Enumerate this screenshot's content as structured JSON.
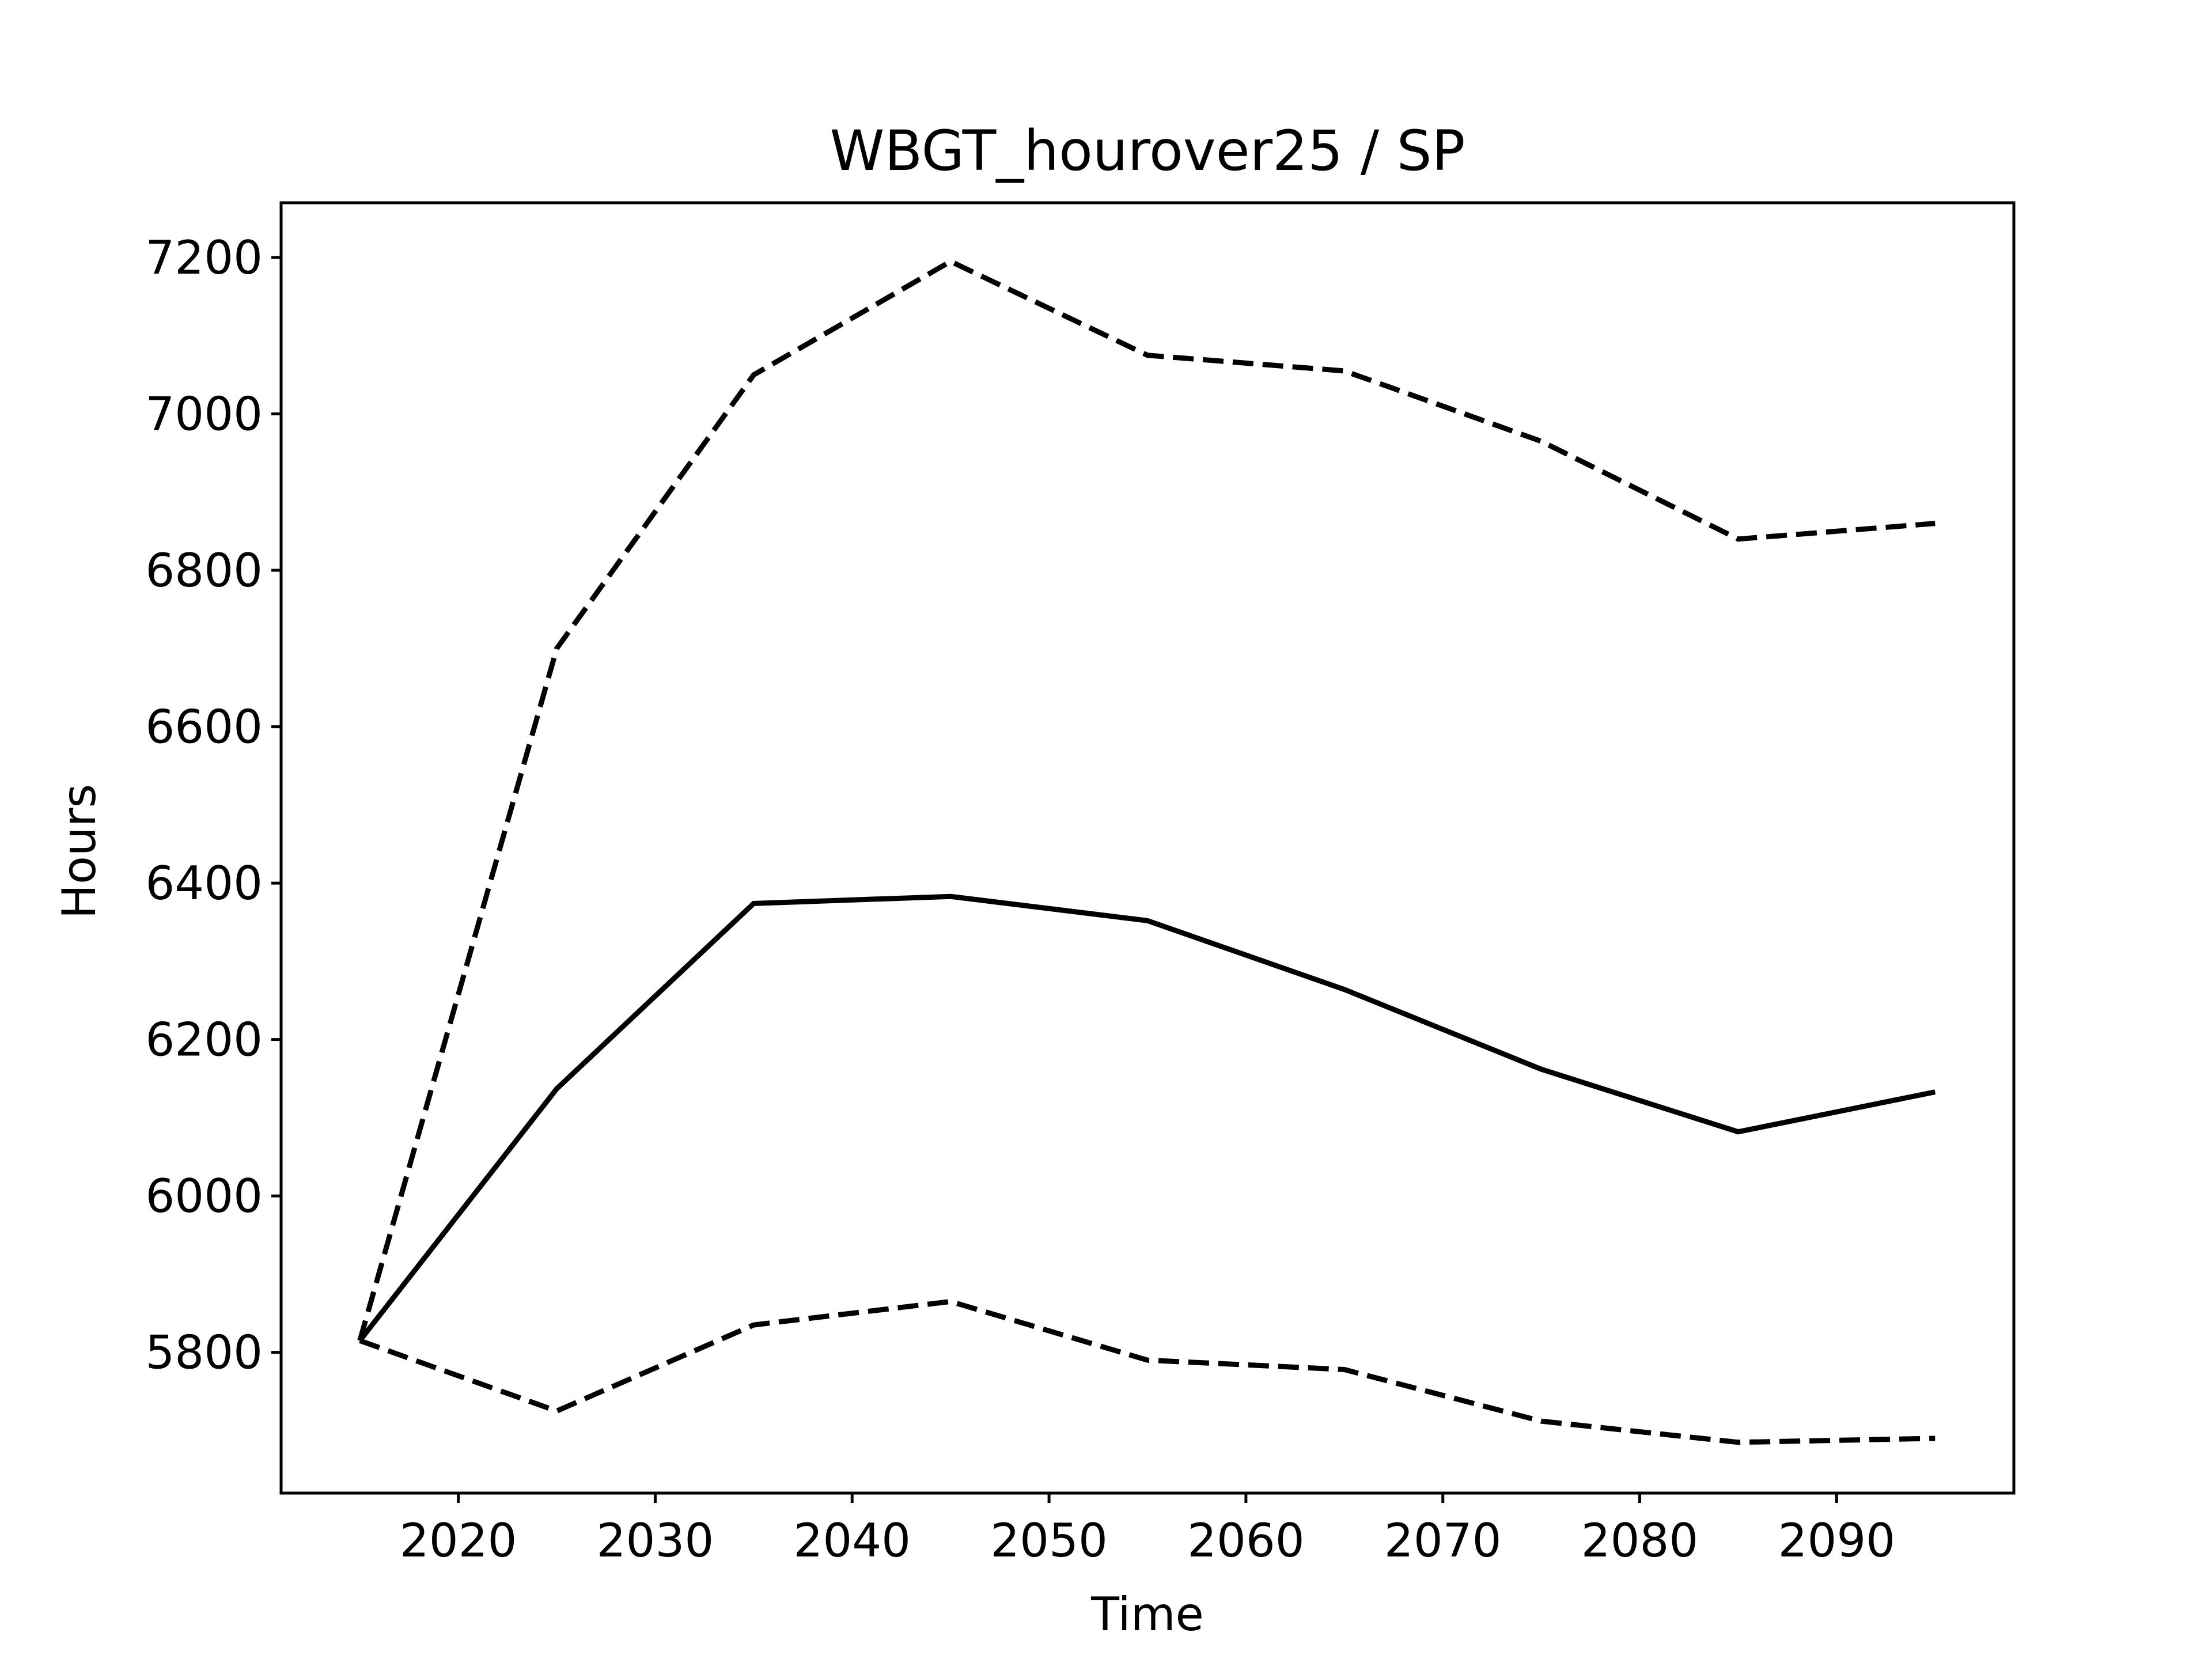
{
  "chart_data": {
    "type": "line",
    "title": "WBGT_hourover25 / SP",
    "xlabel": "Time",
    "ylabel": "Hours",
    "xlim": [
      2011,
      2099
    ],
    "ylim": [
      5620,
      7270
    ],
    "xticks": [
      2020,
      2030,
      2040,
      2050,
      2060,
      2070,
      2080,
      2090
    ],
    "yticks": [
      5800,
      6000,
      6200,
      6400,
      6600,
      6800,
      7000,
      7200
    ],
    "grid": false,
    "x": [
      2015,
      2025,
      2035,
      2045,
      2055,
      2065,
      2075,
      2085,
      2095
    ],
    "series": [
      {
        "values": [
          5815,
          6137,
          6374,
          6383,
          6352,
          6264,
          6162,
          6082,
          6133
        ],
        "style": "solid",
        "color": "#000000"
      },
      {
        "values": [
          5815,
          6700,
          7050,
          7195,
          7075,
          7055,
          6965,
          6840,
          6860
        ],
        "style": "dashed",
        "color": "#000000"
      },
      {
        "values": [
          5815,
          5725,
          5835,
          5865,
          5790,
          5778,
          5712,
          5685,
          5690
        ],
        "style": "dashed",
        "color": "#000000"
      }
    ]
  }
}
